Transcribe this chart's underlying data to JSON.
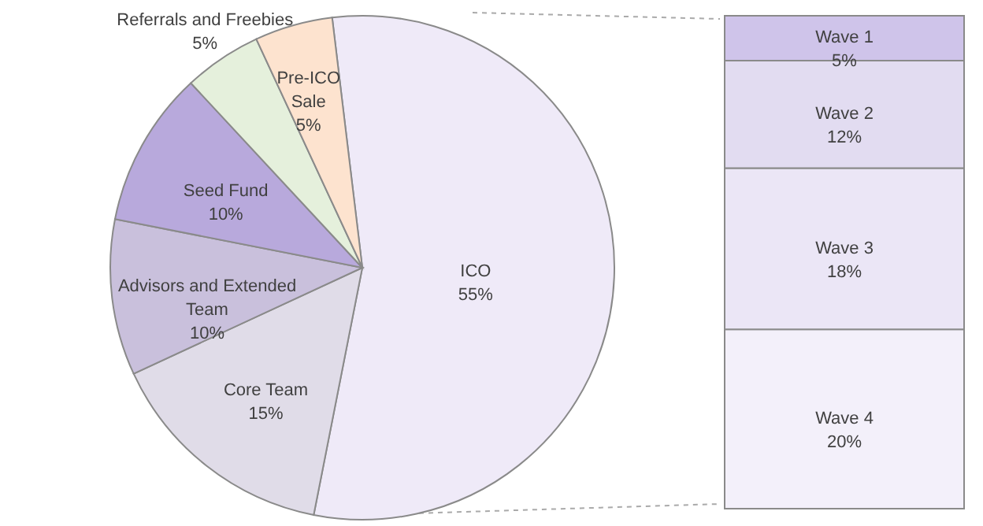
{
  "chart_data": [
    {
      "type": "pie",
      "categories": [
        "ICO",
        "Core Team",
        "Advisors and Extended Team",
        "Seed Fund",
        "Referrals and Freebies",
        "Pre-ICO Sale"
      ],
      "values": [
        55,
        15,
        10,
        10,
        5,
        5
      ],
      "value_labels": [
        "55%",
        "15%",
        "10%",
        "10%",
        "5%",
        "5%"
      ],
      "colors": [
        "#efeaf8",
        "#e0dce8",
        "#c9c0dc",
        "#b8a9dc",
        "#e5f0dc",
        "#fde3cf"
      ],
      "legend": false
    },
    {
      "type": "bar",
      "stacked": true,
      "categories": [
        null
      ],
      "legend": false,
      "series": [
        {
          "name": "Wave 4",
          "color": "#f3f0fa",
          "values": [
            20
          ],
          "value_labels": [
            "20%"
          ]
        },
        {
          "name": "Wave 3",
          "color": "#ebe6f6",
          "values": [
            18
          ],
          "value_labels": [
            "18%"
          ]
        },
        {
          "name": "Wave 2",
          "color": "#e2dcf1",
          "values": [
            12
          ],
          "value_labels": [
            "12%"
          ]
        },
        {
          "name": "Wave 1",
          "color": "#cfc4ea",
          "values": [
            5
          ],
          "value_labels": [
            "5%"
          ]
        }
      ]
    }
  ]
}
